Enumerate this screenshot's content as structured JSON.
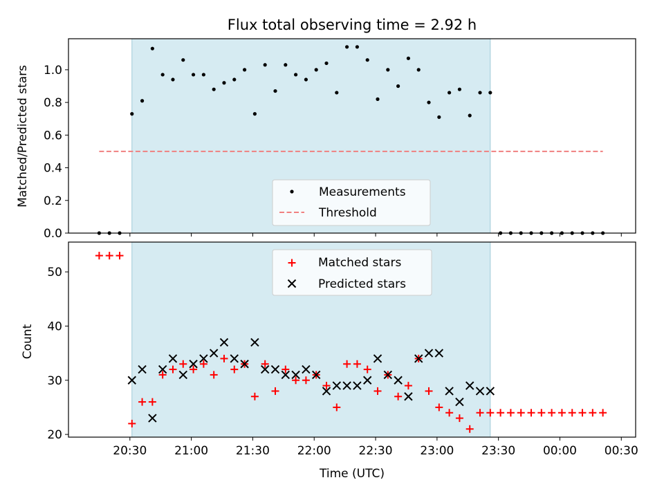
{
  "chart_data": [
    {
      "type": "scatter",
      "title": "Flux total observing time = 2.92 h",
      "ylabel": "Matched/Predicted stars",
      "ylim": [
        0,
        1.19
      ],
      "yticks": [
        0.0,
        0.2,
        0.4,
        0.6,
        0.8,
        1.0
      ],
      "shaded_range": [
        "20:31",
        "23:26"
      ],
      "series": [
        {
          "name": "Measurements",
          "marker": "dot",
          "color": "#000000",
          "x": [
            "20:15",
            "20:20",
            "20:25",
            "20:31",
            "20:36",
            "20:41",
            "20:46",
            "20:51",
            "20:56",
            "21:01",
            "21:06",
            "21:11",
            "21:16",
            "21:21",
            "21:26",
            "21:31",
            "21:36",
            "21:41",
            "21:46",
            "21:51",
            "21:56",
            "22:01",
            "22:06",
            "22:11",
            "22:16",
            "22:21",
            "22:26",
            "22:31",
            "22:36",
            "22:41",
            "22:46",
            "22:51",
            "22:56",
            "23:01",
            "23:06",
            "23:11",
            "23:16",
            "23:21",
            "23:26",
            "23:31",
            "23:36",
            "23:41",
            "23:46",
            "23:51",
            "23:56",
            "00:01",
            "00:06",
            "00:11",
            "00:16",
            "00:21"
          ],
          "y": [
            0.0,
            0.0,
            0.0,
            0.73,
            0.81,
            1.13,
            0.97,
            0.94,
            1.06,
            0.97,
            0.97,
            0.88,
            0.92,
            0.94,
            1.0,
            0.73,
            1.03,
            0.87,
            1.03,
            0.97,
            0.94,
            1.0,
            1.04,
            0.86,
            1.14,
            1.14,
            1.06,
            0.82,
            1.0,
            0.9,
            1.07,
            1.0,
            0.8,
            0.71,
            0.86,
            0.88,
            0.72,
            0.86,
            0.86,
            0.0,
            0.0,
            0.0,
            0.0,
            0.0,
            0.0,
            0.0,
            0.0,
            0.0,
            0.0,
            0.0
          ]
        },
        {
          "name": "Threshold",
          "style": "dashed",
          "color": "#f08080",
          "x": [
            "20:15",
            "00:21"
          ],
          "y": [
            0.5,
            0.5
          ]
        }
      ],
      "legend": "lower-center"
    },
    {
      "type": "scatter",
      "xlabel": "Time (UTC)",
      "ylabel": "Count",
      "ylim": [
        19.5,
        55.5
      ],
      "yticks": [
        20,
        30,
        40,
        50
      ],
      "xticks": [
        "20:30",
        "21:00",
        "21:30",
        "22:00",
        "22:30",
        "23:00",
        "23:30",
        "00:00",
        "00:30"
      ],
      "shaded_range": [
        "20:31",
        "23:26"
      ],
      "series": [
        {
          "name": "Matched stars",
          "marker": "plus",
          "color": "#ff0000",
          "x": [
            "20:15",
            "20:20",
            "20:25",
            "20:31",
            "20:36",
            "20:41",
            "20:46",
            "20:51",
            "20:56",
            "21:01",
            "21:06",
            "21:11",
            "21:16",
            "21:21",
            "21:26",
            "21:31",
            "21:36",
            "21:41",
            "21:46",
            "21:51",
            "21:56",
            "22:01",
            "22:06",
            "22:11",
            "22:16",
            "22:21",
            "22:26",
            "22:31",
            "22:36",
            "22:41",
            "22:46",
            "22:51",
            "22:56",
            "23:01",
            "23:06",
            "23:11",
            "23:16",
            "23:21",
            "23:26",
            "23:31",
            "23:36",
            "23:41",
            "23:46",
            "23:51",
            "23:56",
            "00:01",
            "00:06",
            "00:11",
            "00:16",
            "00:21"
          ],
          "y": [
            53,
            53,
            53,
            22,
            26,
            26,
            31,
            32,
            33,
            32,
            33,
            31,
            34,
            32,
            33,
            27,
            33,
            28,
            32,
            30,
            30,
            31,
            29,
            25,
            33,
            33,
            32,
            28,
            31,
            27,
            29,
            34,
            28,
            25,
            24,
            23,
            21,
            24,
            24,
            24,
            24,
            24,
            24,
            24,
            24,
            24,
            24,
            24,
            24,
            24
          ]
        },
        {
          "name": "Predicted stars",
          "marker": "x",
          "color": "#000000",
          "x": [
            "20:31",
            "20:36",
            "20:41",
            "20:46",
            "20:51",
            "20:56",
            "21:01",
            "21:06",
            "21:11",
            "21:16",
            "21:21",
            "21:26",
            "21:31",
            "21:36",
            "21:41",
            "21:46",
            "21:51",
            "21:56",
            "22:01",
            "22:06",
            "22:11",
            "22:16",
            "22:21",
            "22:26",
            "22:31",
            "22:36",
            "22:41",
            "22:46",
            "22:51",
            "22:56",
            "23:01",
            "23:06",
            "23:11",
            "23:16",
            "23:21",
            "23:26"
          ],
          "y": [
            30,
            32,
            23,
            32,
            34,
            31,
            33,
            34,
            35,
            37,
            34,
            33,
            37,
            32,
            32,
            31,
            31,
            32,
            31,
            28,
            29,
            29,
            29,
            30,
            34,
            31,
            30,
            27,
            34,
            35,
            35,
            28,
            26,
            29,
            28,
            28
          ]
        }
      ],
      "legend": "upper-center"
    }
  ]
}
